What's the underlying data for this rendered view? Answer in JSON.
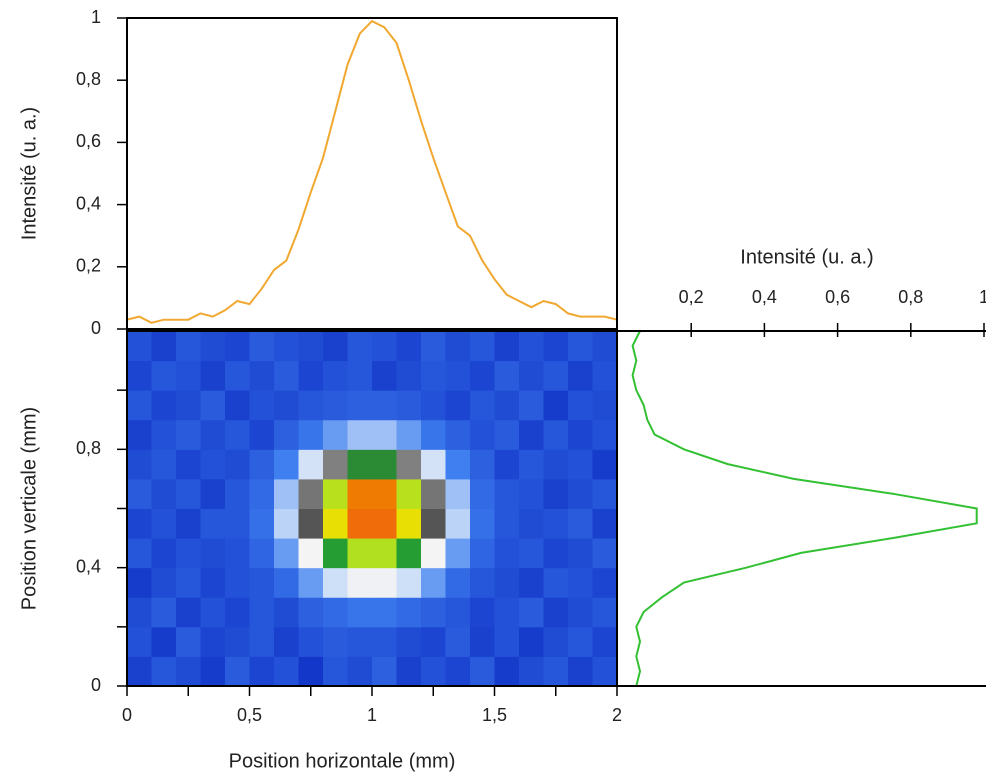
{
  "chart_data": [
    {
      "type": "line",
      "ylabel": "Intensité (u. a.)",
      "color": "#f0a830",
      "x": [
        0,
        0.05,
        0.1,
        0.15,
        0.2,
        0.25,
        0.3,
        0.35,
        0.4,
        0.45,
        0.5,
        0.55,
        0.6,
        0.65,
        0.7,
        0.75,
        0.8,
        0.85,
        0.9,
        0.95,
        1,
        1.05,
        1.1,
        1.15,
        1.2,
        1.25,
        1.3,
        1.35,
        1.4,
        1.45,
        1.5,
        1.55,
        1.6,
        1.65,
        1.7,
        1.75,
        1.8,
        1.85,
        1.9,
        1.95,
        2
      ],
      "values": [
        0.03,
        0.04,
        0.02,
        0.03,
        0.03,
        0.03,
        0.05,
        0.04,
        0.06,
        0.09,
        0.08,
        0.13,
        0.19,
        0.22,
        0.32,
        0.44,
        0.55,
        0.7,
        0.85,
        0.95,
        0.99,
        0.97,
        0.92,
        0.8,
        0.67,
        0.55,
        0.44,
        0.33,
        0.3,
        0.22,
        0.16,
        0.11,
        0.09,
        0.07,
        0.09,
        0.08,
        0.05,
        0.04,
        0.04,
        0.04,
        0.03
      ],
      "xlim": [
        0,
        2
      ],
      "ylim": [
        0,
        1
      ],
      "yticks": [
        0,
        {
          "value": 0.2,
          "label": "0,2"
        },
        {
          "value": 0.4,
          "label": "0,4"
        },
        {
          "value": 0.6,
          "label": "0,6"
        },
        {
          "value": 0.8,
          "label": "0,8"
        },
        1
      ]
    },
    {
      "type": "heatmap",
      "xlabel": "Position horizontale (mm)",
      "ylabel": "Position verticale (mm)",
      "x": [
        0.05,
        0.15,
        0.25,
        0.35,
        0.45,
        0.55,
        0.65,
        0.75,
        0.85,
        0.95,
        1.05,
        1.15,
        1.25,
        1.35,
        1.45,
        1.55,
        1.65,
        1.75,
        1.85,
        1.95
      ],
      "y": [
        0.05,
        0.15,
        0.25,
        0.35,
        0.45,
        0.55,
        0.65,
        0.75,
        0.85,
        0.95,
        1.05,
        1.15
      ],
      "values": [
        [
          0.08,
          0.12,
          0.1,
          0.07,
          0.13,
          0.09,
          0.11,
          0.06,
          0.12,
          0.1,
          0.14,
          0.08,
          0.11,
          0.09,
          0.13,
          0.07,
          0.1,
          0.12,
          0.08,
          0.11
        ],
        [
          0.11,
          0.07,
          0.13,
          0.09,
          0.1,
          0.12,
          0.08,
          0.11,
          0.13,
          0.12,
          0.12,
          0.1,
          0.09,
          0.13,
          0.08,
          0.11,
          0.07,
          0.1,
          0.12,
          0.09
        ],
        [
          0.1,
          0.13,
          0.08,
          0.11,
          0.09,
          0.12,
          0.1,
          0.14,
          0.16,
          0.18,
          0.18,
          0.16,
          0.14,
          0.12,
          0.09,
          0.11,
          0.13,
          0.08,
          0.1,
          0.12
        ],
        [
          0.07,
          0.1,
          0.12,
          0.09,
          0.11,
          0.12,
          0.16,
          0.23,
          0.31,
          0.37,
          0.37,
          0.31,
          0.23,
          0.16,
          0.12,
          0.1,
          0.08,
          0.12,
          0.11,
          0.09
        ],
        [
          0.12,
          0.09,
          0.11,
          0.1,
          0.11,
          0.15,
          0.23,
          0.38,
          0.57,
          0.7,
          0.7,
          0.57,
          0.38,
          0.23,
          0.15,
          0.11,
          0.12,
          0.09,
          0.1,
          0.13
        ],
        [
          0.09,
          0.11,
          0.08,
          0.12,
          0.12,
          0.17,
          0.29,
          0.5,
          0.77,
          0.95,
          0.95,
          0.77,
          0.5,
          0.29,
          0.17,
          0.12,
          0.1,
          0.11,
          0.13,
          0.08
        ],
        [
          0.13,
          0.1,
          0.12,
          0.08,
          0.12,
          0.16,
          0.27,
          0.47,
          0.71,
          0.88,
          0.88,
          0.71,
          0.47,
          0.27,
          0.16,
          0.12,
          0.11,
          0.08,
          0.1,
          0.12
        ],
        [
          0.1,
          0.12,
          0.09,
          0.11,
          0.1,
          0.14,
          0.2,
          0.32,
          0.46,
          0.56,
          0.56,
          0.46,
          0.32,
          0.2,
          0.14,
          0.09,
          0.12,
          0.1,
          0.11,
          0.07
        ],
        [
          0.08,
          0.11,
          0.13,
          0.1,
          0.12,
          0.09,
          0.14,
          0.18,
          0.23,
          0.27,
          0.27,
          0.23,
          0.18,
          0.14,
          0.11,
          0.13,
          0.08,
          0.12,
          0.09,
          0.11
        ],
        [
          0.12,
          0.09,
          0.1,
          0.13,
          0.08,
          0.11,
          0.1,
          0.12,
          0.13,
          0.14,
          0.14,
          0.13,
          0.11,
          0.09,
          0.12,
          0.1,
          0.13,
          0.07,
          0.11,
          0.1
        ],
        [
          0.09,
          0.12,
          0.11,
          0.08,
          0.12,
          0.1,
          0.13,
          0.09,
          0.11,
          0.12,
          0.08,
          0.1,
          0.12,
          0.11,
          0.09,
          0.13,
          0.1,
          0.12,
          0.08,
          0.11
        ],
        [
          0.11,
          0.08,
          0.12,
          0.1,
          0.09,
          0.13,
          0.11,
          0.1,
          0.08,
          0.12,
          0.11,
          0.09,
          0.13,
          0.1,
          0.12,
          0.08,
          0.11,
          0.09,
          0.12,
          0.1
        ]
      ],
      "colorscale": [
        [
          0,
          "#0018b8"
        ],
        [
          0.2,
          "#3f7ff0"
        ],
        [
          0.3,
          "#c8dcf8"
        ],
        [
          0.38,
          "#f4f4f4"
        ],
        [
          0.46,
          "#808080"
        ],
        [
          0.52,
          "#404040"
        ],
        [
          0.58,
          "#20b030"
        ],
        [
          0.7,
          "#b0e020"
        ],
        [
          0.78,
          "#f0e000"
        ],
        [
          0.86,
          "#f08000"
        ],
        [
          1,
          "#f06010"
        ]
      ],
      "xlim": [
        0,
        2
      ],
      "ylim": [
        0,
        1.2
      ],
      "xticks": [
        0,
        {
          "value": 0.5,
          "label": "0,5"
        },
        1,
        {
          "value": 1.5,
          "label": "1,5"
        },
        2
      ],
      "xticks_minor": [
        0.25,
        0.75,
        1.25,
        1.75
      ],
      "yticks": [
        0,
        {
          "value": 0.4,
          "label": "0,4"
        },
        {
          "value": 0.8,
          "label": "0,8"
        }
      ],
      "yticks_minor": [
        0.2,
        0.6,
        1
      ]
    },
    {
      "type": "line",
      "xlabel": "Intensité (u. a.)",
      "color": "#33c033",
      "y": [
        0,
        0.05,
        0.1,
        0.15,
        0.2,
        0.25,
        0.3,
        0.35,
        0.4,
        0.45,
        0.5,
        0.55,
        0.6,
        0.65,
        0.7,
        0.75,
        0.8,
        0.85,
        0.9,
        0.95,
        1,
        1.05,
        1.1,
        1.15,
        1.2
      ],
      "values": [
        0.05,
        0.06,
        0.05,
        0.06,
        0.05,
        0.07,
        0.12,
        0.18,
        0.35,
        0.5,
        0.75,
        0.98,
        0.98,
        0.75,
        0.48,
        0.3,
        0.18,
        0.1,
        0.08,
        0.07,
        0.05,
        0.04,
        0.05,
        0.04,
        0.06
      ],
      "xlim": [
        0,
        1
      ],
      "ylim": [
        0,
        1.2
      ],
      "xticks": [
        {
          "value": 0.2,
          "label": "0,2"
        },
        {
          "value": 0.4,
          "label": "0,4"
        },
        {
          "value": 0.6,
          "label": "0,6"
        },
        {
          "value": 0.8,
          "label": "0,8"
        },
        1
      ]
    }
  ]
}
